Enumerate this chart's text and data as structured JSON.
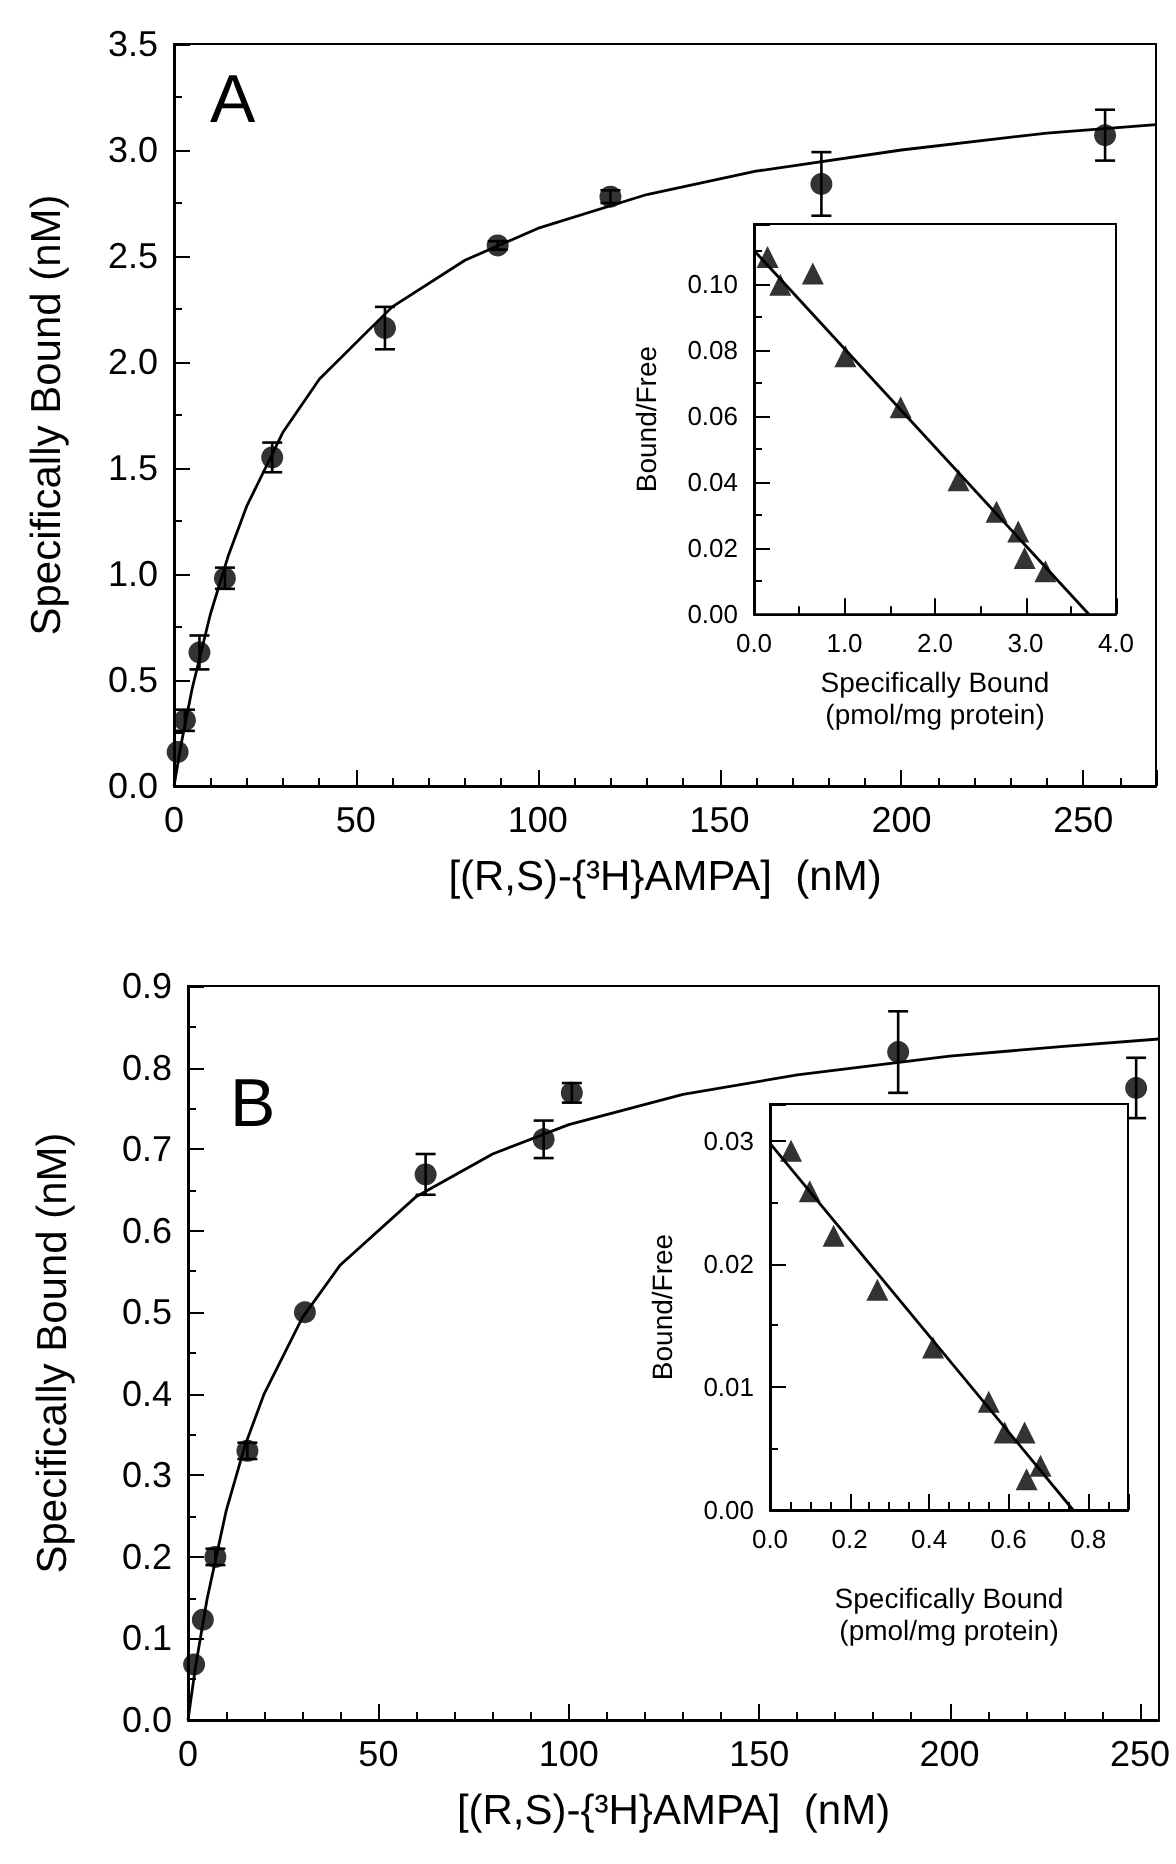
{
  "chart_data": [
    {
      "type": "scatter",
      "title": "A",
      "xlabel": "[(R,S)-{³H}AMPA]  (nM)",
      "ylabel": "Specifically Bound (nM)",
      "xlim": [
        0,
        270
      ],
      "xticks": [
        0,
        50,
        100,
        150,
        200,
        250
      ],
      "ylim": [
        0,
        3.5
      ],
      "yticks": [
        {
          "value": 0,
          "label": "0.0"
        },
        {
          "value": 0.5,
          "label": "0.5"
        },
        {
          "value": 1,
          "label": "1.0"
        },
        {
          "value": 1.5,
          "label": "1.5"
        },
        {
          "value": 2,
          "label": "2.0"
        },
        {
          "value": 2.5,
          "label": "2.5"
        },
        {
          "value": 3,
          "label": "3.0"
        },
        {
          "value": 3.5,
          "label": "3.5"
        }
      ],
      "series": [
        {
          "type": "scatter",
          "color": "#000000",
          "marker": "circle",
          "x": [
            1,
            3,
            7,
            14,
            27,
            58,
            89,
            120,
            178,
            256
          ],
          "values": [
            0.16,
            0.31,
            0.63,
            0.98,
            1.55,
            2.16,
            2.55,
            2.78,
            2.84,
            3.07
          ],
          "errors": [
            null,
            0.05,
            0.08,
            0.05,
            0.07,
            0.1,
            0.02,
            0.03,
            0.15,
            0.12
          ]
        },
        {
          "type": "line",
          "color": "#000000",
          "marker": "none",
          "x": [
            0,
            2,
            5,
            10,
            15,
            20,
            30,
            40,
            60,
            80,
            100,
            130,
            160,
            200,
            240,
            270
          ],
          "values": [
            0,
            0.2,
            0.46,
            0.81,
            1.09,
            1.32,
            1.67,
            1.92,
            2.26,
            2.48,
            2.63,
            2.79,
            2.9,
            3.0,
            3.08,
            3.12
          ]
        }
      ]
    },
    {
      "type": "scatter",
      "xlabel": "Specifically Bound\n(pmol/mg protein)",
      "ylabel": "Bound/Free",
      "xlim": [
        0,
        4
      ],
      "xticks": [
        {
          "value": 0,
          "label": "0.0"
        },
        {
          "value": 1,
          "label": "1.0"
        },
        {
          "value": 2,
          "label": "2.0"
        },
        {
          "value": 3,
          "label": "3.0"
        },
        {
          "value": 4,
          "label": "4.0"
        }
      ],
      "ylim": [
        0,
        0.118
      ],
      "yticks": [
        {
          "value": 0,
          "label": "0.00"
        },
        {
          "value": 0.02,
          "label": "0.02"
        },
        {
          "value": 0.04,
          "label": "0.04"
        },
        {
          "value": 0.06,
          "label": "0.06"
        },
        {
          "value": 0.08,
          "label": "0.08"
        },
        {
          "value": 0.1,
          "label": "0.10"
        }
      ],
      "series": [
        {
          "type": "scatter",
          "color": "#000000",
          "marker": "triangle",
          "x": [
            0.15,
            0.29,
            0.65,
            1.01,
            1.62,
            2.26,
            2.68,
            2.92,
            2.99,
            3.22
          ],
          "values": [
            0.108,
            0.0996,
            0.103,
            0.078,
            0.0626,
            0.0405,
            0.031,
            0.025,
            0.017,
            0.013
          ]
        },
        {
          "type": "line",
          "color": "#000000",
          "marker": "none",
          "x": [
            0,
            3.7
          ],
          "values": [
            0.11,
            0
          ]
        }
      ]
    },
    {
      "type": "scatter",
      "title": "B",
      "xlabel": "[(R,S)-{³H}AMPA]  (nM)",
      "ylabel": "Specifically Bound (nM)",
      "xlim": [
        0,
        255
      ],
      "xticks": [
        0,
        50,
        100,
        150,
        200,
        250
      ],
      "ylim": [
        0,
        0.9
      ],
      "yticks": [
        {
          "value": 0,
          "label": "0.0"
        },
        {
          "value": 0.1,
          "label": "0.1"
        },
        {
          "value": 0.2,
          "label": "0.2"
        },
        {
          "value": 0.3,
          "label": "0.3"
        },
        {
          "value": 0.4,
          "label": "0.4"
        },
        {
          "value": 0.5,
          "label": "0.5"
        },
        {
          "value": 0.6,
          "label": "0.6"
        },
        {
          "value": 0.7,
          "label": "0.7"
        },
        {
          "value": 0.8,
          "label": "0.8"
        },
        {
          "value": 0.9,
          "label": "0.9"
        }
      ],
      "series": [
        {
          "type": "scatter",
          "color": "#000000",
          "marker": "circle",
          "x": [
            1.6,
            3.9,
            7.2,
            15.6,
            30.7,
            62.4,
            93.4,
            100.8,
            186.5,
            249
          ],
          "values": [
            0.068,
            0.123,
            0.2,
            0.33,
            0.5,
            0.669,
            0.712,
            0.769,
            0.819,
            0.775
          ],
          "errors": [
            null,
            null,
            0.01,
            0.01,
            null,
            0.025,
            0.023,
            0.012,
            0.05,
            0.037
          ]
        },
        {
          "type": "line",
          "color": "#000000",
          "marker": "none",
          "x": [
            0,
            2,
            5,
            10,
            15,
            20,
            30,
            40,
            60,
            80,
            100,
            130,
            160,
            200,
            230,
            255
          ],
          "values": [
            0,
            0.066,
            0.148,
            0.256,
            0.337,
            0.4,
            0.493,
            0.558,
            0.642,
            0.694,
            0.73,
            0.767,
            0.791,
            0.814,
            0.826,
            0.835
          ]
        }
      ]
    },
    {
      "type": "scatter",
      "xlabel": "Specifically Bound\n(pmol/mg protein)",
      "ylabel": "Bound/Free",
      "xlim": [
        0,
        0.9
      ],
      "xticks": [
        {
          "value": 0,
          "label": "0.0"
        },
        {
          "value": 0.2,
          "label": "0.2"
        },
        {
          "value": 0.4,
          "label": "0.4"
        },
        {
          "value": 0.6,
          "label": "0.6"
        },
        {
          "value": 0.8,
          "label": "0.8"
        }
      ],
      "ylim": [
        0,
        0.033
      ],
      "yticks": [
        {
          "value": 0,
          "label": "0.00"
        },
        {
          "value": 0.01,
          "label": "0.01"
        },
        {
          "value": 0.02,
          "label": "0.02"
        },
        {
          "value": 0.03,
          "label": "0.03"
        }
      ],
      "series": [
        {
          "type": "scatter",
          "color": "#000000",
          "marker": "triangle",
          "x": [
            0.053,
            0.1,
            0.16,
            0.27,
            0.41,
            0.55,
            0.59,
            0.64,
            0.645,
            0.68
          ],
          "values": [
            0.0292,
            0.0259,
            0.0223,
            0.0179,
            0.0132,
            0.0088,
            0.0063,
            0.0063,
            0.0025,
            0.0036
          ]
        },
        {
          "type": "line",
          "color": "#000000",
          "marker": "none",
          "x": [
            0,
            0.762
          ],
          "values": [
            0.0298,
            0
          ]
        }
      ]
    }
  ]
}
